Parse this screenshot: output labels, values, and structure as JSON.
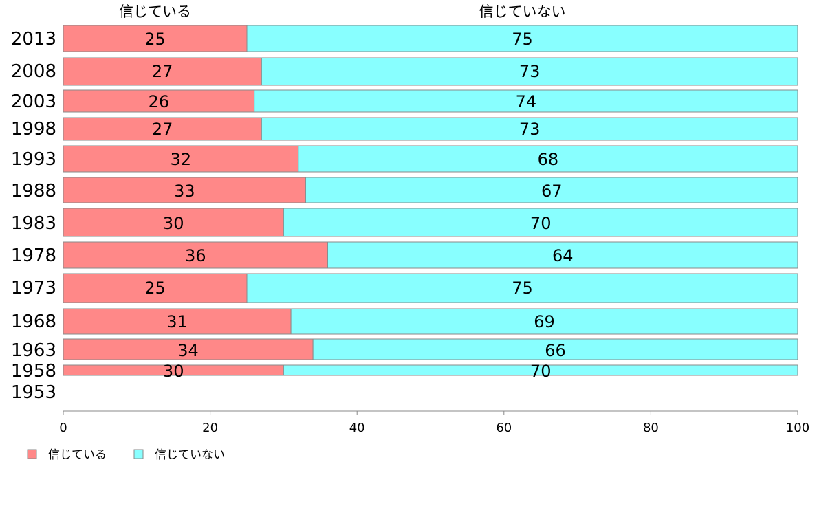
{
  "chart_data": {
    "type": "bar",
    "orientation": "horizontal",
    "stacked": true,
    "categories": [
      "2013",
      "2008",
      "2003",
      "1998",
      "1993",
      "1988",
      "1983",
      "1978",
      "1973",
      "1968",
      "1963",
      "1958",
      "1953"
    ],
    "series": [
      {
        "name": "信じている",
        "color": "#ff8888",
        "values": [
          25,
          27,
          26,
          27,
          32,
          33,
          30,
          36,
          25,
          31,
          34,
          30,
          null
        ]
      },
      {
        "name": "信じていない",
        "color": "#88ffff",
        "values": [
          75,
          73,
          74,
          73,
          68,
          67,
          70,
          64,
          75,
          69,
          66,
          70,
          null
        ]
      }
    ],
    "column_headers": [
      "信じている",
      "信じていない"
    ],
    "xlim": [
      0,
      100
    ],
    "xticks": [
      "0",
      "20",
      "40",
      "60",
      "80",
      "100"
    ],
    "grid": false,
    "legend": "bottom-left"
  }
}
